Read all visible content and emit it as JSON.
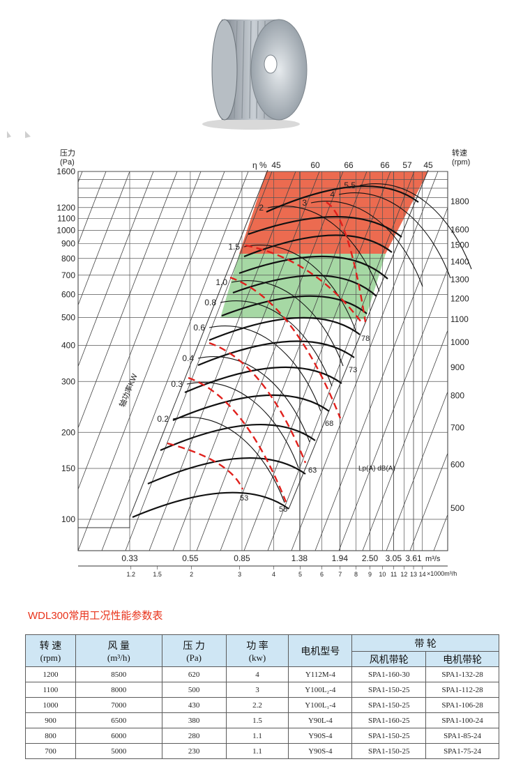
{
  "chart_data": {
    "type": "line",
    "left_axis": {
      "label_lines": [
        "压力",
        "(Pa)"
      ],
      "ticks": [
        100,
        150,
        200,
        300,
        400,
        500,
        600,
        700,
        800,
        900,
        1000,
        1100,
        1200,
        1600
      ]
    },
    "right_axis": {
      "label_lines": [
        "转速",
        "(rpm)"
      ],
      "ticks": [
        500,
        600,
        700,
        800,
        900,
        1000,
        1100,
        1200,
        1300,
        1400,
        1500,
        1600,
        1800
      ]
    },
    "x_axis_top": {
      "ticks": [
        "0.33",
        "0.55",
        "0.85",
        "1.38",
        "1.94",
        "2.50",
        "3.05",
        "3.61"
      ],
      "unit": "m³/s"
    },
    "x_axis_bottom": {
      "ticks": [
        "1.2",
        "1.5",
        "2",
        "3",
        "4",
        "5",
        "6",
        "7",
        "8",
        "9",
        "10",
        "11",
        "12",
        "13",
        "14"
      ],
      "unit": "×1000m³/h"
    },
    "efficiency_label": "η %",
    "efficiency_ticks": [
      "45",
      "60",
      "66",
      "66",
      "57",
      "45"
    ],
    "power_axis_label": "轴功率KW",
    "power_labels": [
      "0.2",
      "0.3",
      "0.4",
      "0.6",
      "0.8",
      "1.0",
      "1.5",
      "2",
      "3",
      "4",
      "5.5"
    ],
    "noise_label": "Lp(A) dB(A)",
    "noise_labels": [
      "53",
      "58",
      "63",
      "68",
      "73",
      "78"
    ],
    "red_zone_rpm": [
      1600,
      1800
    ],
    "green_zone_rpm": [
      1300,
      1500
    ],
    "colors": {
      "red_zone": "#ec6b50",
      "green_zone": "#a6d8a4",
      "dashed_curves": "#e0201c"
    }
  },
  "table": {
    "title": "WDL300常用工况性能参数表",
    "headers": {
      "speed": "转  速",
      "speed_unit": "(rpm)",
      "flow": "风  量",
      "flow_unit": "(m³/h)",
      "pressure": "压  力",
      "pressure_unit": "(Pa)",
      "power": "功  率",
      "power_unit": "(kw)",
      "motor": "电机型号",
      "belt": "带          轮",
      "fan_pulley": "风机带轮",
      "motor_pulley": "电机带轮"
    },
    "rows": [
      [
        "1200",
        "8500",
        "620",
        "4",
        "Y112M-4",
        "SPA1-160-30",
        "SPA1-132-28"
      ],
      [
        "1100",
        "8000",
        "500",
        "3",
        "Y100L₂-4",
        "SPA1-150-25",
        "SPA1-112-28"
      ],
      [
        "1000",
        "7000",
        "430",
        "2.2",
        "Y100L₁-4",
        "SPA1-150-25",
        "SPA1-106-28"
      ],
      [
        "900",
        "6500",
        "380",
        "1.5",
        "Y90L-4",
        "SPA1-160-25",
        "SPA1-100-24"
      ],
      [
        "800",
        "6000",
        "280",
        "1.1",
        "Y90S-4",
        "SPA1-150-25",
        "SPA1-85-24"
      ],
      [
        "700",
        "5000",
        "230",
        "1.1",
        "Y90S-4",
        "SPA1-150-25",
        "SPA1-75-24"
      ]
    ]
  }
}
